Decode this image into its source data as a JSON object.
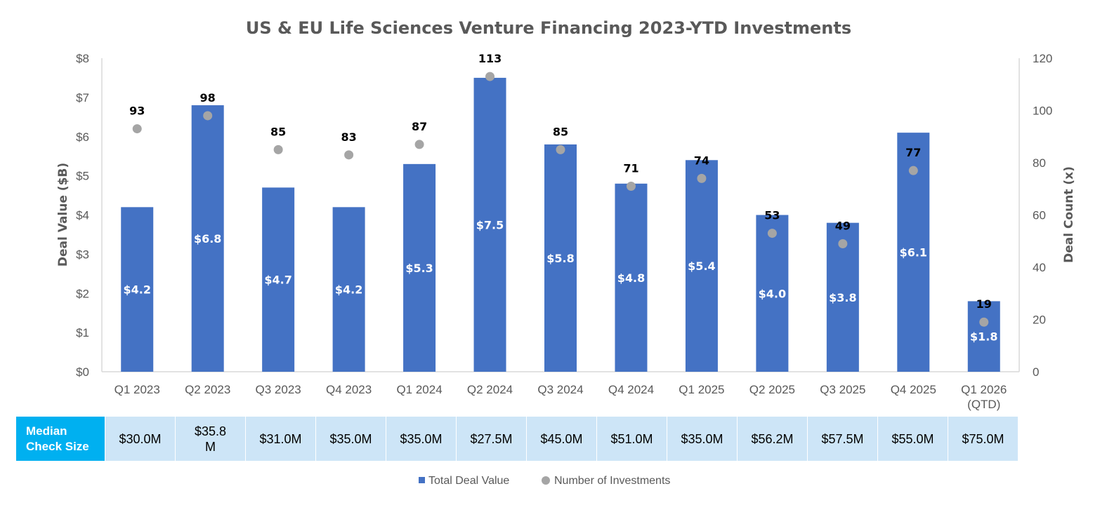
{
  "chart_data": {
    "type": "bar",
    "title": "US & EU Life Sciences Venture Financing 2023-YTD Investments",
    "categories": [
      "Q1 2023",
      "Q2 2023",
      "Q3 2023",
      "Q4 2023",
      "Q1 2024",
      "Q2 2024",
      "Q3 2024",
      "Q4 2024",
      "Q1 2025",
      "Q2 2025",
      "Q3 2025",
      "Q4 2025",
      "Q1 2026\n(QTD)"
    ],
    "series": [
      {
        "name": "Total Deal Value",
        "type": "bar",
        "axis": "left",
        "color": "#4472c4",
        "values": [
          4.2,
          6.8,
          4.7,
          4.2,
          5.3,
          7.5,
          5.8,
          4.8,
          5.4,
          4.0,
          3.8,
          6.1,
          1.8
        ],
        "labels": [
          "$4.2",
          "$6.8",
          "$4.7",
          "$4.2",
          "$5.3",
          "$7.5",
          "$5.8",
          "$4.8",
          "$5.4",
          "$4.0",
          "$3.8",
          "$6.1",
          "$1.8"
        ]
      },
      {
        "name": "Number of Investments",
        "type": "scatter",
        "axis": "right",
        "color": "#a5a5a5",
        "values": [
          93,
          98,
          85,
          83,
          87,
          113,
          85,
          71,
          74,
          53,
          49,
          77,
          19
        ]
      }
    ],
    "ylabel": "Deal Value ($B)",
    "ylabel_right": "Deal Count (x)",
    "ylim": [
      0,
      8
    ],
    "ylim_right": [
      0,
      120
    ],
    "yticks": [
      "$0",
      "$1",
      "$2",
      "$3",
      "$4",
      "$5",
      "$6",
      "$7",
      "$8"
    ],
    "yticks_right": [
      "0",
      "20",
      "40",
      "60",
      "80",
      "100",
      "120"
    ],
    "legend_position": "bottom",
    "grid": false
  },
  "table": {
    "header": "Median\nCheck Size",
    "values": [
      "$30.0M",
      "$35.8\nM",
      "$31.0M",
      "$35.0M",
      "$35.0M",
      "$27.5M",
      "$45.0M",
      "$51.0M",
      "$35.0M",
      "$56.2M",
      "$57.5M",
      "$55.0M",
      "$75.0M"
    ]
  }
}
